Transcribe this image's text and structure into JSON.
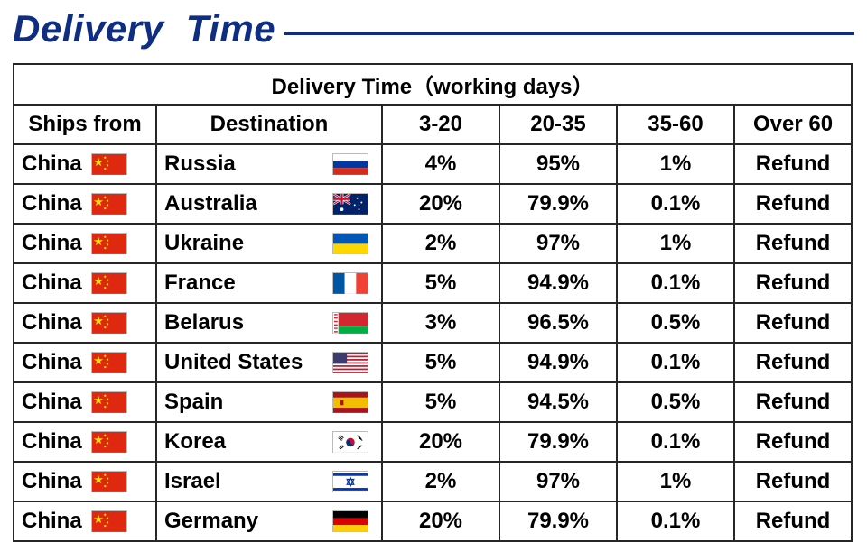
{
  "title": "Delivery  Time",
  "table_title": "Delivery Time（working days）",
  "colors": {
    "title_color": "#0f2e82",
    "rule_color": "#0f2e82",
    "border_color": "#262626",
    "text_color": "#000000",
    "background": "#ffffff"
  },
  "columns": {
    "ships_from": "Ships from",
    "destination": "Destination",
    "c1": "3-20",
    "c2": "20-35",
    "c3": "35-60",
    "c4": "Over 60"
  },
  "ship_origin": {
    "label": "China",
    "flag": "cn"
  },
  "rows": [
    {
      "dest": "Russia",
      "flag": "ru",
      "v": [
        "4%",
        "95%",
        "1%",
        "Refund"
      ]
    },
    {
      "dest": "Australia",
      "flag": "au",
      "v": [
        "20%",
        "79.9%",
        "0.1%",
        "Refund"
      ]
    },
    {
      "dest": "Ukraine",
      "flag": "ua",
      "v": [
        "2%",
        "97%",
        "1%",
        "Refund"
      ]
    },
    {
      "dest": "France",
      "flag": "fr",
      "v": [
        "5%",
        "94.9%",
        "0.1%",
        "Refund"
      ]
    },
    {
      "dest": "Belarus",
      "flag": "by",
      "v": [
        "3%",
        "96.5%",
        "0.5%",
        "Refund"
      ]
    },
    {
      "dest": "United States",
      "flag": "us",
      "v": [
        "5%",
        "94.9%",
        "0.1%",
        "Refund"
      ]
    },
    {
      "dest": "Spain",
      "flag": "es",
      "v": [
        "5%",
        "94.5%",
        "0.5%",
        "Refund"
      ]
    },
    {
      "dest": "Korea",
      "flag": "kr",
      "v": [
        "20%",
        "79.9%",
        "0.1%",
        "Refund"
      ]
    },
    {
      "dest": "Israel",
      "flag": "il",
      "v": [
        "2%",
        "97%",
        "1%",
        "Refund"
      ]
    },
    {
      "dest": "Germany",
      "flag": "de",
      "v": [
        "20%",
        "79.9%",
        "0.1%",
        "Refund"
      ]
    }
  ],
  "flags": {
    "cn": {
      "bg": "#de2910",
      "svg": "<svg viewBox='0 0 40 24'><rect width='40' height='24' fill='#de2910'/><polygon points='6,3 7.4,7.3 12,7.3 8.3,10 9.7,14.3 6,11.6 2.3,14.3 3.7,10 0,7.3 4.6,7.3' fill='#ffde00' transform='translate(2,1) scale(0.9)'/><circle cx='15' cy='4' r='1.2' fill='#ffde00'/><circle cx='18' cy='8' r='1.2' fill='#ffde00'/><circle cx='18' cy='13' r='1.2' fill='#ffde00'/><circle cx='15' cy='17' r='1.2' fill='#ffde00'/></svg>"
    },
    "ru": {
      "svg": "<svg viewBox='0 0 40 24'><rect width='40' height='8' y='0' fill='#ffffff'/><rect width='40' height='8' y='8' fill='#0039a6'/><rect width='40' height='8' y='16' fill='#d52b1e'/></svg>"
    },
    "au": {
      "svg": "<svg viewBox='0 0 40 24'><rect width='40' height='24' fill='#012169'/><rect width='20' height='12' fill='#012169'/><path d='M0,0 L20,12 M20,0 L0,12' stroke='#fff' stroke-width='2.5'/><path d='M0,0 L20,12 M20,0 L0,12' stroke='#c8102e' stroke-width='1.2'/><rect x='8' width='4' height='12' fill='#fff'/><rect y='4' width='20' height='4' fill='#fff'/><rect x='8.8' width='2.4' height='12' fill='#c8102e'/><rect y='4.8' width='20' height='2.4' fill='#c8102e'/><circle cx='10' cy='18' r='2' fill='#fff'/><circle cx='28' cy='5' r='1' fill='#fff'/><circle cx='33' cy='10' r='1' fill='#fff'/><circle cx='30' cy='18' r='1' fill='#fff'/><circle cx='25' cy='13' r='1' fill='#fff'/><circle cx='30' cy='13' r='0.7' fill='#fff'/></svg>"
    },
    "ua": {
      "svg": "<svg viewBox='0 0 40 24'><rect width='40' height='12' y='0' fill='#0057b7'/><rect width='40' height='12' y='12' fill='#ffd700'/></svg>"
    },
    "fr": {
      "svg": "<svg viewBox='0 0 40 24'><rect width='13.33' height='24' x='0' fill='#0055a4'/><rect width='13.33' height='24' x='13.33' fill='#ffffff'/><rect width='13.34' height='24' x='26.66' fill='#ef4135'/></svg>"
    },
    "by": {
      "svg": "<svg viewBox='0 0 40 24'><rect width='40' height='16' fill='#d22730'/><rect width='40' height='8' y='16' fill='#00af41'/><rect width='6' height='24' fill='#ffffff'/><path d='M1 2h4M1 6h4M1 10h4M1 14h4M1 18h4M1 22h4' stroke='#d22730' stroke-width='1.5'/></svg>"
    },
    "us": {
      "svg": "<svg viewBox='0 0 40 24'><rect width='40' height='24' fill='#b22234'/><g fill='#fff'><rect y='1.85' width='40' height='1.85'/><rect y='5.55' width='40' height='1.85'/><rect y='9.25' width='40' height='1.85'/><rect y='12.95' width='40' height='1.85'/><rect y='16.65' width='40' height='1.85'/><rect y='20.35' width='40' height='1.85'/></g><rect width='16' height='12.9' fill='#3c3b6e'/></svg>"
    },
    "es": {
      "svg": "<svg viewBox='0 0 40 24'><rect width='40' height='24' fill='#aa151b'/><rect width='40' height='12' y='6' fill='#f1bf00'/><rect x='8' y='9' width='4' height='6' fill='#aa151b'/></svg>"
    },
    "kr": {
      "svg": "<svg viewBox='0 0 40 24'><rect width='40' height='24' fill='#ffffff'/><circle cx='20' cy='12' r='5' fill='#c60c30'/><path d='M15,12 a5,5 0 0,0 10,0 a2.5,2.5 0 0,1 -5,0 a2.5,2.5 0 0,0 -5,0' fill='#003478'/><g stroke='#000' stroke-width='1'><line x1='8' y1='4' x2='12' y2='7'/><line x1='7' y1='5.5' x2='11' y2='8.5'/><line x1='6' y1='7' x2='10' y2='10'/><line x1='28' y1='4' x2='32' y2='7'/><line x1='29' y1='5.5' x2='33' y2='8.5'/><line x1='30' y1='7' x2='34' y2='10'/><line x1='8' y1='20' x2='12' y2='17'/><line x1='7' y1='18.5' x2='11' y2='15.5'/><line x1='28' y1='20' x2='32' y2='17'/><line x1='29' y1='18.5' x2='33' y2='15.5'/></g></svg>"
    },
    "il": {
      "svg": "<svg viewBox='0 0 40 24'><rect width='40' height='24' fill='#ffffff'/><rect width='40' height='3' y='2' fill='#0038b8'/><rect width='40' height='3' y='19' fill='#0038b8'/><path d='M20 7 L24 15 L16 15 Z M20 17 L16 9 L24 9 Z' fill='none' stroke='#0038b8' stroke-width='1.3'/></svg>"
    },
    "de": {
      "svg": "<svg viewBox='0 0 40 24'><rect width='40' height='8' y='0' fill='#000000'/><rect width='40' height='8' y='8' fill='#dd0000'/><rect width='40' height='8' y='16' fill='#ffce00'/></svg>"
    }
  }
}
